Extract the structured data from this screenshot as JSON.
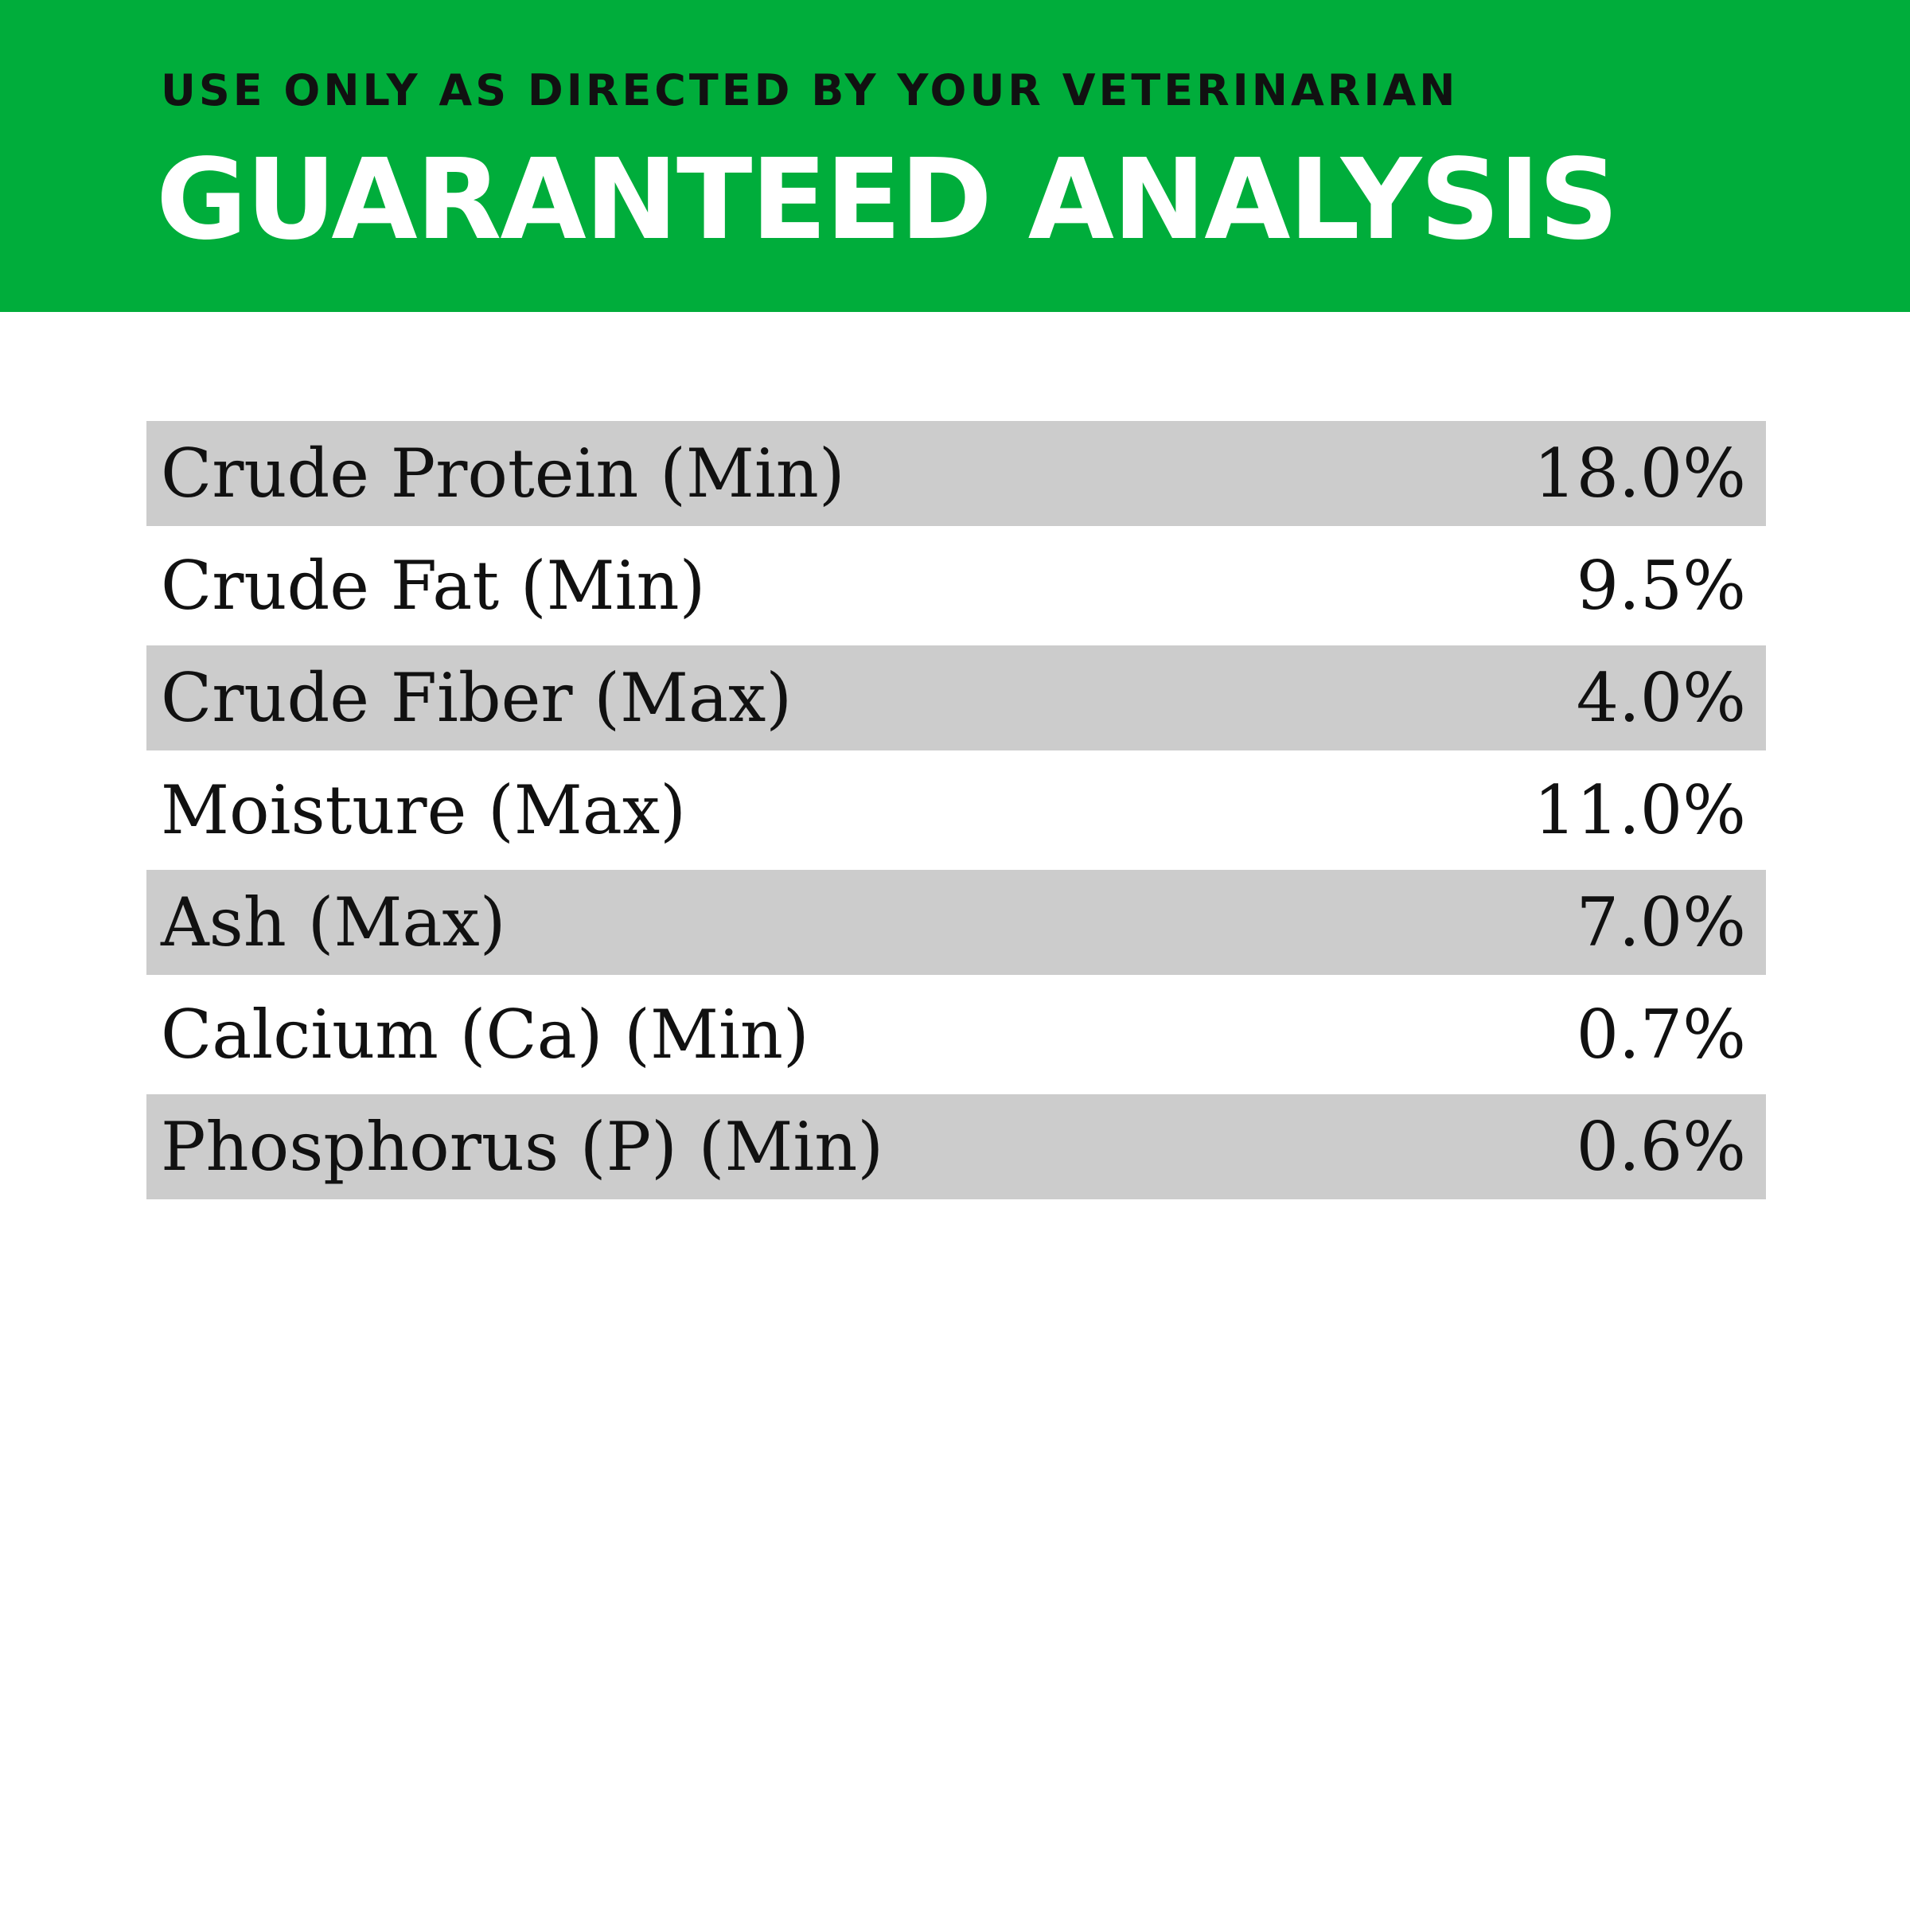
{
  "header": {
    "subtitle": "USE ONLY AS DIRECTED BY YOUR VETERINARIAN",
    "title": "GUARANTEED ANALYSIS",
    "color": "#00ad3b"
  },
  "rows": [
    {
      "label": "Crude Protein (Min)",
      "value": "18.0%"
    },
    {
      "label": "Crude Fat (Min)",
      "value": "9.5%"
    },
    {
      "label": "Crude Fiber (Max)",
      "value": "4.0%"
    },
    {
      "label": "Moisture (Max)",
      "value": "11.0%"
    },
    {
      "label": "Ash (Max)",
      "value": "7.0%"
    },
    {
      "label": "Calcium (Ca) (Min)",
      "value": "0.7%"
    },
    {
      "label": "Phosphorus (P) (Min)",
      "value": "0.6%"
    }
  ]
}
